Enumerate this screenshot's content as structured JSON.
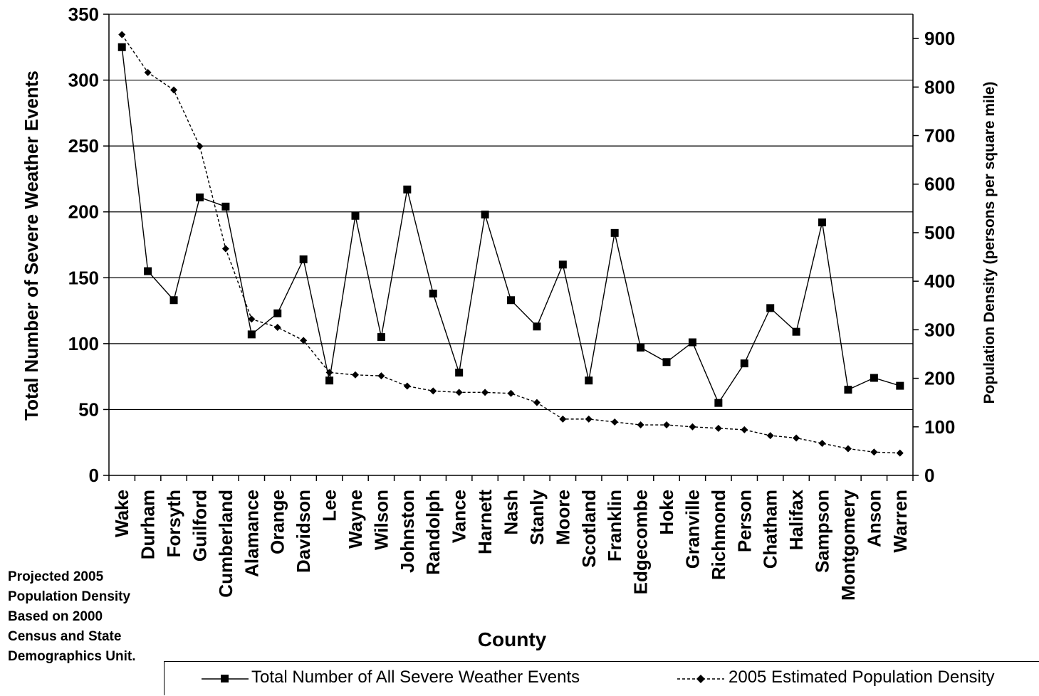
{
  "chart_data": {
    "type": "line",
    "title": "",
    "xlabel": "County",
    "ylabel": "Total Number of Severe Weather Events",
    "y2label": "Population Density (persons per square mile)",
    "ylim": [
      0,
      350
    ],
    "y2lim": [
      0,
      950
    ],
    "yticks": [
      0,
      50,
      100,
      150,
      200,
      250,
      300,
      350
    ],
    "y2ticks": [
      0,
      100,
      200,
      300,
      400,
      500,
      600,
      700,
      800,
      900
    ],
    "grid": true,
    "legend_position": "bottom",
    "categories": [
      "Wake",
      "Durham",
      "Forsyth",
      "Guilford",
      "Cumberland",
      "Alamance",
      "Orange",
      "Davidson",
      "Lee",
      "Wayne",
      "Wilson",
      "Johnston",
      "Randolph",
      "Vance",
      "Harnett",
      "Nash",
      "Stanly",
      "Moore",
      "Scotland",
      "Franklin",
      "Edgecombe",
      "Hoke",
      "Granville",
      "Richmond",
      "Person",
      "Chatham",
      "Halifax",
      "Sampson",
      "Montgomery",
      "Anson",
      "Warren"
    ],
    "series": [
      {
        "name": "Total Number of All Severe Weather Events",
        "axis": "left",
        "style": "solid",
        "marker": "square",
        "values": [
          325,
          155,
          133,
          211,
          204,
          107,
          123,
          164,
          72,
          197,
          105,
          217,
          138,
          78,
          198,
          133,
          113,
          160,
          72,
          184,
          97,
          86,
          101,
          55,
          85,
          127,
          109,
          192,
          65,
          74,
          68
        ]
      },
      {
        "name": "2005 Estimated Population Density",
        "axis": "right",
        "style": "dashed",
        "marker": "diamond",
        "values": [
          908,
          830,
          794,
          678,
          467,
          322,
          305,
          278,
          212,
          207,
          205,
          184,
          174,
          171,
          171,
          169,
          150,
          116,
          116,
          110,
          104,
          104,
          100,
          97,
          94,
          82,
          77,
          66,
          55,
          48,
          46
        ]
      }
    ],
    "annotation": [
      "Projected 2005",
      "Population Density",
      "Based on 2000",
      "Census and State",
      "Demographics Unit."
    ]
  }
}
